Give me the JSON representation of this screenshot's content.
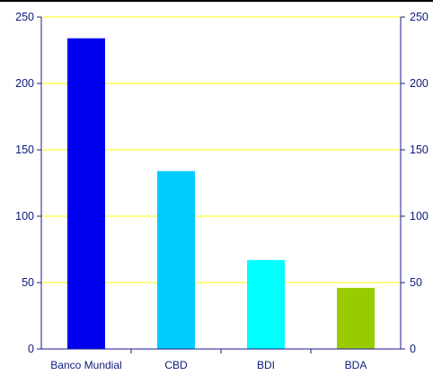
{
  "chart_data": {
    "type": "bar",
    "categories": [
      "Banco Mundial",
      "CBD",
      "BDI",
      "BDA"
    ],
    "values": [
      234,
      134,
      67,
      46
    ],
    "bar_colors": [
      "#0000ee",
      "#00ccff",
      "#00ffff",
      "#99cc00"
    ],
    "ylim": [
      0,
      250
    ],
    "yticks": [
      0,
      50,
      100,
      150,
      200,
      250
    ],
    "secondary_y_axis": true,
    "grid": true,
    "colors": {
      "gridline": "#ffff00",
      "axis": "#1a1a8c",
      "text": "#0c1a7a",
      "top_border": "#000000"
    }
  }
}
